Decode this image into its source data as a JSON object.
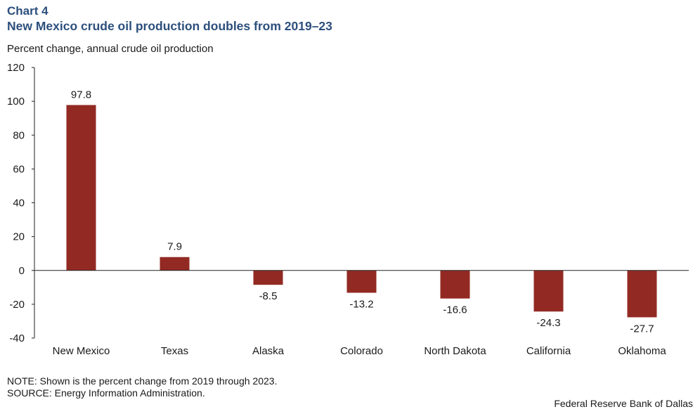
{
  "header": {
    "chart_number": "Chart 4",
    "title": "New Mexico crude oil production doubles from 2019–23",
    "subtitle": "Percent change, annual crude oil production"
  },
  "footer": {
    "note": "NOTE: Shown is the percent change from 2019 through 2023.",
    "source": "SOURCE: Energy Information Administration.",
    "credit": "Federal Reserve Bank of Dallas"
  },
  "colors": {
    "bar": "#922a23",
    "title": "#2c4f7c",
    "axis": "#222222"
  },
  "chart_data": {
    "type": "bar",
    "title": "New Mexico crude oil production doubles from 2019–23",
    "xlabel": "",
    "ylabel": "Percent change, annual crude oil production",
    "categories": [
      "New Mexico",
      "Texas",
      "Alaska",
      "Colorado",
      "North Dakota",
      "California",
      "Oklahoma"
    ],
    "values": [
      97.8,
      7.9,
      -8.5,
      -13.2,
      -16.6,
      -24.3,
      -27.7
    ],
    "data_labels": [
      "97.8",
      "7.9",
      "-8.5",
      "-13.2",
      "-16.6",
      "-24.3",
      "-27.7"
    ],
    "ylim": [
      -40,
      120
    ],
    "yticks": [
      120,
      100,
      80,
      60,
      40,
      20,
      0,
      -20,
      -40
    ],
    "ytick_labels": [
      "120",
      "100",
      "80",
      "60",
      "40",
      "20",
      "0",
      "-20",
      "-40"
    ],
    "grid": false,
    "legend": "none"
  }
}
